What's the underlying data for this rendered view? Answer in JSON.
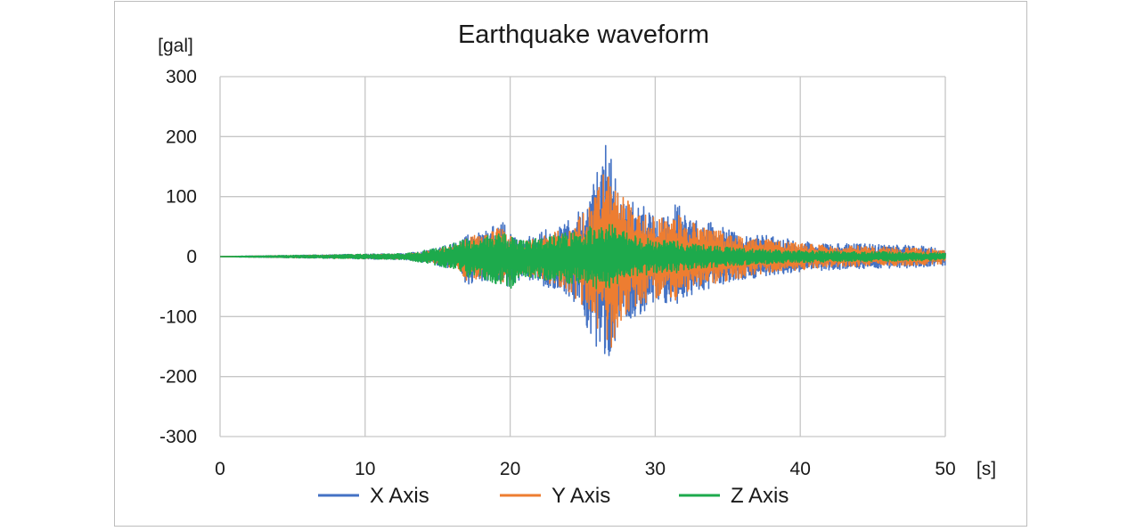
{
  "chart_data": {
    "type": "line",
    "title": "Earthquake waveform",
    "xlabel": "[s]",
    "ylabel": "[gal]",
    "xlim": [
      0,
      50
    ],
    "ylim": [
      -300,
      300
    ],
    "x_ticks": [
      "0",
      "10",
      "20",
      "30",
      "40",
      "50"
    ],
    "y_ticks": [
      "300",
      "200",
      "100",
      "0",
      "-100",
      "-200",
      "-300"
    ],
    "grid": true,
    "legend_position": "bottom",
    "series": [
      {
        "name": "X Axis",
        "color": "#4472C4",
        "x": [
          0,
          12.8,
          13.5,
          14.5,
          15.5,
          16.5,
          17.0,
          17.5,
          18.0,
          18.5,
          19.0,
          19.5,
          20.0,
          20.5,
          21.0,
          21.5,
          22.0,
          22.5,
          23.0,
          23.5,
          24.0,
          24.5,
          25.0,
          25.5,
          26.0,
          26.3,
          26.6,
          26.8,
          27.0,
          27.3,
          27.5,
          28.0,
          28.5,
          29.0,
          29.5,
          30.0,
          30.5,
          31.0,
          31.5,
          32.0,
          33.0,
          34.0,
          35.0,
          36.0,
          37.0,
          38.0,
          39.0,
          40.0,
          42.0,
          44.0,
          46.0,
          48.0,
          50.0
        ],
        "y_max": [
          0,
          5,
          8,
          12,
          18,
          25,
          35,
          40,
          40,
          45,
          55,
          60,
          40,
          35,
          30,
          35,
          40,
          45,
          45,
          50,
          60,
          70,
          80,
          100,
          140,
          180,
          220,
          170,
          160,
          140,
          120,
          100,
          90,
          90,
          75,
          70,
          70,
          65,
          95,
          70,
          65,
          55,
          45,
          40,
          35,
          35,
          30,
          25,
          22,
          22,
          20,
          18,
          15
        ],
        "y_min": [
          0,
          -5,
          -8,
          -12,
          -18,
          -25,
          -50,
          -45,
          -40,
          -40,
          -45,
          -50,
          -50,
          -40,
          -35,
          -40,
          -45,
          -55,
          -55,
          -60,
          -70,
          -80,
          -100,
          -130,
          -160,
          -150,
          -180,
          -170,
          -190,
          -150,
          -130,
          -110,
          -100,
          -95,
          -90,
          -85,
          -80,
          -75,
          -100,
          -70,
          -60,
          -50,
          -45,
          -40,
          -35,
          -30,
          -28,
          -25,
          -22,
          -20,
          -20,
          -18,
          -15
        ]
      },
      {
        "name": "Y Axis",
        "color": "#ED7D31",
        "x": [
          0,
          12.8,
          13.5,
          14.5,
          15.5,
          16.5,
          17.0,
          17.5,
          18.0,
          18.5,
          19.0,
          19.5,
          20.0,
          20.5,
          21.0,
          21.5,
          22.0,
          22.5,
          23.0,
          23.5,
          24.0,
          24.5,
          25.0,
          25.5,
          26.0,
          26.3,
          26.6,
          26.8,
          27.0,
          27.3,
          27.5,
          28.0,
          28.5,
          29.0,
          29.5,
          30.0,
          30.5,
          31.0,
          31.5,
          32.0,
          33.0,
          34.0,
          35.0,
          36.0,
          37.0,
          38.0,
          39.0,
          40.0,
          42.0,
          44.0,
          46.0,
          48.0,
          50.0
        ],
        "y_max": [
          0,
          4,
          7,
          10,
          15,
          22,
          30,
          35,
          35,
          38,
          45,
          50,
          35,
          30,
          28,
          30,
          35,
          40,
          40,
          45,
          55,
          60,
          70,
          90,
          120,
          135,
          140,
          150,
          165,
          130,
          110,
          95,
          85,
          80,
          70,
          65,
          65,
          60,
          80,
          60,
          55,
          45,
          40,
          35,
          30,
          30,
          25,
          22,
          18,
          18,
          16,
          14,
          12
        ],
        "y_min": [
          0,
          -4,
          -7,
          -10,
          -15,
          -22,
          -40,
          -38,
          -35,
          -35,
          -40,
          -45,
          -40,
          -35,
          -30,
          -35,
          -40,
          -45,
          -45,
          -50,
          -60,
          -70,
          -85,
          -110,
          -130,
          -130,
          -150,
          -150,
          -170,
          -130,
          -115,
          -95,
          -85,
          -80,
          -75,
          -70,
          -70,
          -65,
          -80,
          -60,
          -50,
          -45,
          -40,
          -35,
          -30,
          -26,
          -24,
          -22,
          -18,
          -16,
          -16,
          -14,
          -12
        ]
      },
      {
        "name": "Z Axis",
        "color": "#1DAA4C",
        "x": [
          0,
          12.8,
          13.5,
          14.5,
          15.5,
          16.5,
          17.0,
          17.5,
          18.0,
          18.5,
          19.0,
          19.5,
          20.0,
          20.5,
          21.0,
          21.5,
          22.0,
          22.5,
          23.0,
          23.5,
          24.0,
          24.5,
          25.0,
          25.5,
          26.0,
          26.3,
          26.6,
          26.8,
          27.0,
          27.3,
          27.5,
          28.0,
          28.5,
          29.0,
          29.5,
          30.0,
          30.5,
          31.0,
          31.5,
          32.0,
          33.0,
          34.0,
          35.0,
          36.0,
          37.0,
          38.0,
          39.0,
          40.0,
          42.0,
          44.0,
          46.0,
          48.0,
          50.0
        ],
        "y_max": [
          0,
          5,
          8,
          12,
          18,
          25,
          30,
          32,
          35,
          35,
          40,
          40,
          35,
          30,
          28,
          30,
          32,
          35,
          35,
          38,
          40,
          42,
          45,
          50,
          55,
          55,
          55,
          55,
          55,
          50,
          45,
          40,
          35,
          32,
          30,
          28,
          28,
          25,
          28,
          22,
          20,
          18,
          16,
          14,
          12,
          12,
          10,
          10,
          9,
          8,
          8,
          7,
          6
        ],
        "y_min": [
          0,
          -5,
          -8,
          -12,
          -18,
          -25,
          -35,
          -35,
          -38,
          -40,
          -45,
          -50,
          -55,
          -40,
          -35,
          -35,
          -38,
          -40,
          -40,
          -42,
          -45,
          -45,
          -48,
          -50,
          -55,
          -55,
          -55,
          -55,
          -55,
          -50,
          -45,
          -40,
          -35,
          -32,
          -30,
          -28,
          -28,
          -25,
          -28,
          -22,
          -20,
          -18,
          -16,
          -14,
          -12,
          -12,
          -10,
          -10,
          -9,
          -8,
          -8,
          -7,
          -6
        ]
      }
    ]
  }
}
